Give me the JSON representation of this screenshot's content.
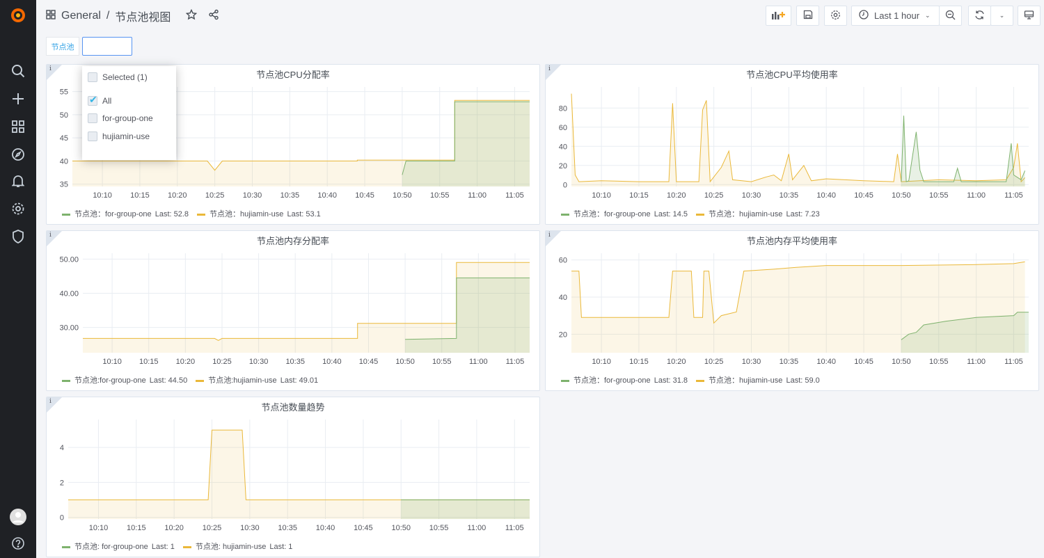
{
  "breadcrumb": {
    "folder": "General",
    "separator": "/",
    "dashboard": "节点池视图"
  },
  "toolbar": {
    "time_range": "Last 1 hour"
  },
  "variable": {
    "label": "节点池",
    "value": ""
  },
  "dropdown": {
    "selected": "Selected (1)",
    "options": [
      {
        "label": "All",
        "checked": true
      },
      {
        "label": "for-group-one",
        "checked": false
      },
      {
        "label": "hujiamin-use",
        "checked": false
      }
    ]
  },
  "colors": {
    "for-group-one": "#7eb26d",
    "hujiamin-use": "#eab839",
    "sidebar": "#1f2125",
    "accent": "#33a2e5"
  },
  "x_ticks": [
    "10:10",
    "10:15",
    "10:20",
    "10:25",
    "10:30",
    "10:35",
    "10:40",
    "10:45",
    "10:50",
    "10:55",
    "11:00",
    "11:05"
  ],
  "chart_data": [
    {
      "type": "area",
      "title": "节点池CPU分配率",
      "xlim": [
        "10:06",
        "11:07"
      ],
      "ylim": [
        34.5,
        56
      ],
      "y_ticks": [
        "35",
        "40",
        "45",
        "50",
        "55"
      ],
      "grid": true,
      "legend_position": "bottom",
      "series": [
        {
          "name": "hujiamin-use",
          "legend": "节点池：hujiamin-use",
          "last": "Last: 53.1",
          "points": [
            [
              "10:06",
              40
            ],
            [
              "10:24",
              40
            ],
            [
              "10:25",
              38
            ],
            [
              "10:26",
              40
            ],
            [
              "10:44",
              40
            ],
            [
              "10:44",
              40.2
            ],
            [
              "10:57",
              40.2
            ],
            [
              "10:57",
              53.1
            ],
            [
              "11:07",
              53.1
            ]
          ]
        },
        {
          "name": "for-group-one",
          "legend": "节点池：for-group-one",
          "last": "Last: 52.8",
          "points": [
            [
              "10:50",
              37
            ],
            [
              "10:50:30",
              40
            ],
            [
              "10:57",
              40
            ],
            [
              "10:57",
              52.8
            ],
            [
              "11:07",
              52.8
            ]
          ]
        }
      ]
    },
    {
      "type": "area",
      "title": "节点池CPU平均使用率",
      "xlim": [
        "10:06",
        "11:07"
      ],
      "ylim": [
        -2,
        102
      ],
      "y_ticks": [
        "0",
        "20",
        "40",
        "60",
        "80"
      ],
      "grid": true,
      "legend_position": "bottom",
      "series": [
        {
          "name": "hujiamin-use",
          "legend": "节点池：hujiamin-use",
          "last": "Last: 7.23",
          "points": [
            [
              "10:06",
              95
            ],
            [
              "10:06:30",
              10
            ],
            [
              "10:07",
              3
            ],
            [
              "10:10",
              4
            ],
            [
              "10:15",
              3
            ],
            [
              "10:19",
              3
            ],
            [
              "10:19:30",
              85
            ],
            [
              "10:20",
              3
            ],
            [
              "10:23",
              3
            ],
            [
              "10:23:30",
              78
            ],
            [
              "10:24",
              88
            ],
            [
              "10:24:30",
              3
            ],
            [
              "10:26",
              18
            ],
            [
              "10:27",
              35
            ],
            [
              "10:27:30",
              5
            ],
            [
              "10:30",
              3
            ],
            [
              "10:32",
              8
            ],
            [
              "10:33",
              10
            ],
            [
              "10:34",
              4
            ],
            [
              "10:35",
              32
            ],
            [
              "10:35:30",
              5
            ],
            [
              "10:37",
              20
            ],
            [
              "10:38",
              4
            ],
            [
              "10:40",
              6
            ],
            [
              "10:45",
              4
            ],
            [
              "10:49",
              3
            ],
            [
              "10:49:30",
              32
            ],
            [
              "10:50",
              3
            ],
            [
              "10:55",
              5
            ],
            [
              "11:00",
              4
            ],
            [
              "11:04",
              5
            ],
            [
              "11:05",
              18
            ],
            [
              "11:05:30",
              43
            ],
            [
              "11:06",
              3
            ],
            [
              "11:06:30",
              7.23
            ]
          ]
        },
        {
          "name": "for-group-one",
          "legend": "节点池：for-group-one",
          "last": "Last: 14.5",
          "points": [
            [
              "10:50",
              3
            ],
            [
              "10:50:20",
              72
            ],
            [
              "10:50:40",
              3
            ],
            [
              "10:51",
              4
            ],
            [
              "10:52",
              55
            ],
            [
              "10:52:30",
              15
            ],
            [
              "10:53",
              3
            ],
            [
              "10:57",
              3
            ],
            [
              "10:57:30",
              17
            ],
            [
              "10:58",
              3
            ],
            [
              "11:04",
              3
            ],
            [
              "11:04:40",
              43
            ],
            [
              "11:05",
              10
            ],
            [
              "11:06",
              5
            ],
            [
              "11:06:30",
              14.5
            ]
          ]
        }
      ]
    },
    {
      "type": "area",
      "title": "节点池内存分配率",
      "xlim": [
        "10:06",
        "11:07"
      ],
      "ylim": [
        22.6,
        51.7
      ],
      "y_ticks": [
        "30.00",
        "40.00",
        "50.00"
      ],
      "grid": true,
      "legend_position": "bottom",
      "series": [
        {
          "name": "hujiamin-use",
          "legend": "节点池:hujiamin-use",
          "last": "Last: 49.01",
          "points": [
            [
              "10:06",
              26.8
            ],
            [
              "10:24",
              26.8
            ],
            [
              "10:24:30",
              26.2
            ],
            [
              "10:25",
              26.8
            ],
            [
              "10:43:30",
              26.8
            ],
            [
              "10:43:30",
              31.2
            ],
            [
              "10:57",
              31.2
            ],
            [
              "10:57",
              49.01
            ],
            [
              "11:07",
              49.01
            ]
          ]
        },
        {
          "name": "for-group-one",
          "legend": "节点池:for-group-one",
          "last": "Last: 44.50",
          "points": [
            [
              "10:50",
              26.5
            ],
            [
              "10:57",
              26.8
            ],
            [
              "10:57",
              44.5
            ],
            [
              "11:07",
              44.5
            ]
          ]
        }
      ]
    },
    {
      "type": "area",
      "title": "节点池内存平均使用率",
      "xlim": [
        "10:06",
        "11:07"
      ],
      "ylim": [
        10,
        63.6
      ],
      "y_ticks": [
        "20",
        "40",
        "60"
      ],
      "grid": true,
      "legend_position": "bottom",
      "series": [
        {
          "name": "hujiamin-use",
          "legend": "节点池：hujiamin-use",
          "last": "Last: 59.0",
          "points": [
            [
              "10:06",
              54
            ],
            [
              "10:07",
              54
            ],
            [
              "10:07:20",
              29
            ],
            [
              "10:19",
              29
            ],
            [
              "10:19:30",
              54
            ],
            [
              "10:22",
              54
            ],
            [
              "10:22:20",
              29
            ],
            [
              "10:23:30",
              29
            ],
            [
              "10:23:40",
              54
            ],
            [
              "10:24:20",
              54
            ],
            [
              "10:25",
              26
            ],
            [
              "10:26",
              30
            ],
            [
              "10:28",
              32
            ],
            [
              "10:29",
              54
            ],
            [
              "10:33",
              55
            ],
            [
              "10:36",
              56
            ],
            [
              "10:40",
              57
            ],
            [
              "10:50",
              57
            ],
            [
              "11:00",
              57.5
            ],
            [
              "11:05",
              58
            ],
            [
              "11:06:30",
              59
            ]
          ]
        },
        {
          "name": "for-group-one",
          "legend": "节点池：for-group-one",
          "last": "Last: 31.8",
          "points": [
            [
              "10:50",
              17
            ],
            [
              "10:51",
              20
            ],
            [
              "10:52",
              21
            ],
            [
              "10:53",
              25
            ],
            [
              "10:56",
              27
            ],
            [
              "11:00",
              29
            ],
            [
              "11:05",
              30
            ],
            [
              "11:05:30",
              31.8
            ],
            [
              "11:07",
              31.8
            ]
          ]
        }
      ]
    },
    {
      "type": "area",
      "title": "节点池数量趋势",
      "xlim": [
        "10:06",
        "11:07"
      ],
      "ylim": [
        -0.1,
        5.6
      ],
      "y_ticks": [
        "0",
        "2",
        "4"
      ],
      "grid": true,
      "legend_position": "bottom",
      "series": [
        {
          "name": "hujiamin-use",
          "legend": "节点池: hujiamin-use",
          "last": "Last: 1",
          "points": [
            [
              "10:06",
              1
            ],
            [
              "10:24:30",
              1
            ],
            [
              "10:25",
              5
            ],
            [
              "10:29",
              5
            ],
            [
              "10:29:30",
              1
            ],
            [
              "11:07",
              1
            ]
          ]
        },
        {
          "name": "for-group-one",
          "legend": "节点池: for-group-one",
          "last": "Last: 1",
          "points": [
            [
              "10:50",
              1
            ],
            [
              "11:07",
              1
            ]
          ]
        }
      ]
    }
  ]
}
